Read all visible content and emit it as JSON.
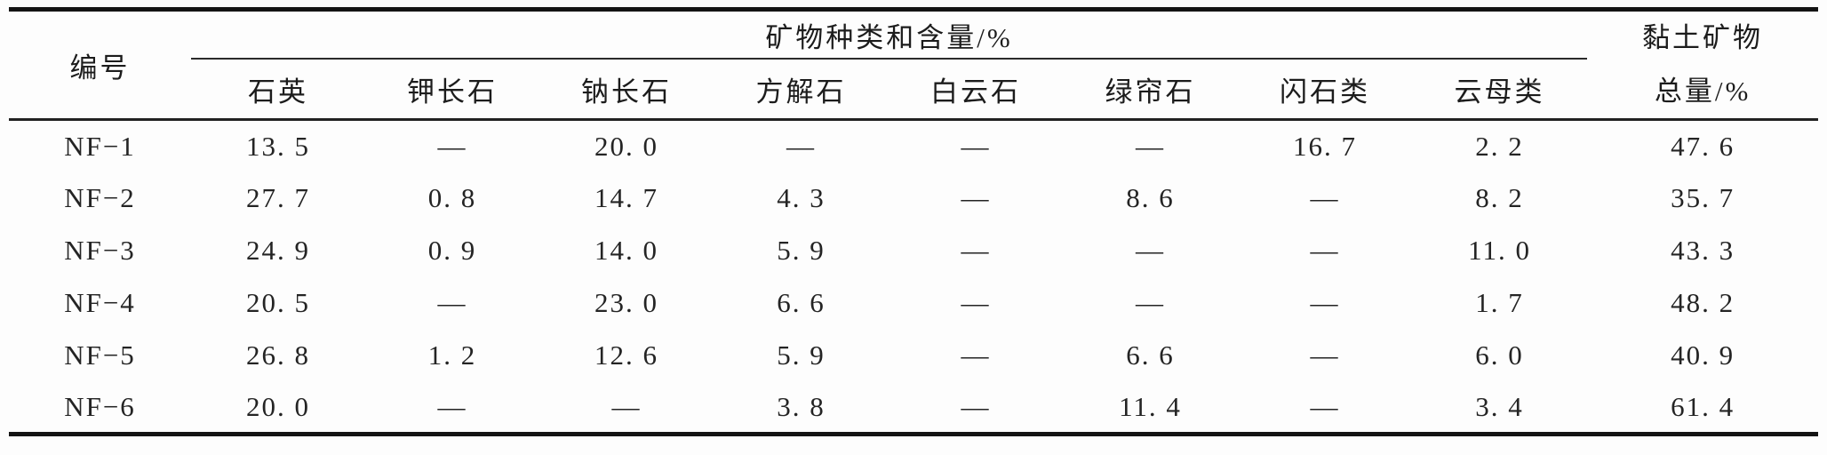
{
  "table": {
    "id_header": "编号",
    "group_header": "矿物种类和含量/%",
    "clay_header_line1": "黏土矿物",
    "clay_header_line2": "总量/%",
    "mineral_columns": [
      "石英",
      "钾长石",
      "钠长石",
      "方解石",
      "白云石",
      "绿帘石",
      "闪石类",
      "云母类"
    ],
    "rows": [
      {
        "id": "NF−1",
        "values": [
          "13. 5",
          "—",
          "20. 0",
          "—",
          "—",
          "—",
          "16. 7",
          "2. 2",
          "47. 6"
        ]
      },
      {
        "id": "NF−2",
        "values": [
          "27. 7",
          "0. 8",
          "14. 7",
          "4. 3",
          "—",
          "8. 6",
          "—",
          "8. 2",
          "35. 7"
        ]
      },
      {
        "id": "NF−3",
        "values": [
          "24. 9",
          "0. 9",
          "14. 0",
          "5. 9",
          "—",
          "—",
          "—",
          "11. 0",
          "43. 3"
        ]
      },
      {
        "id": "NF−4",
        "values": [
          "20. 5",
          "—",
          "23. 0",
          "6. 6",
          "—",
          "—",
          "—",
          "1. 7",
          "48. 2"
        ]
      },
      {
        "id": "NF−5",
        "values": [
          "26. 8",
          "1. 2",
          "12. 6",
          "5. 9",
          "—",
          "6. 6",
          "—",
          "6. 0",
          "40. 9"
        ]
      },
      {
        "id": "NF−6",
        "values": [
          "20. 0",
          "—",
          "—",
          "3. 8",
          "—",
          "11. 4",
          "—",
          "3. 4",
          "61. 4"
        ]
      }
    ]
  },
  "colors": {
    "rule": "#141414",
    "text": "#1c1c1c",
    "background": "#fdfdfd"
  }
}
